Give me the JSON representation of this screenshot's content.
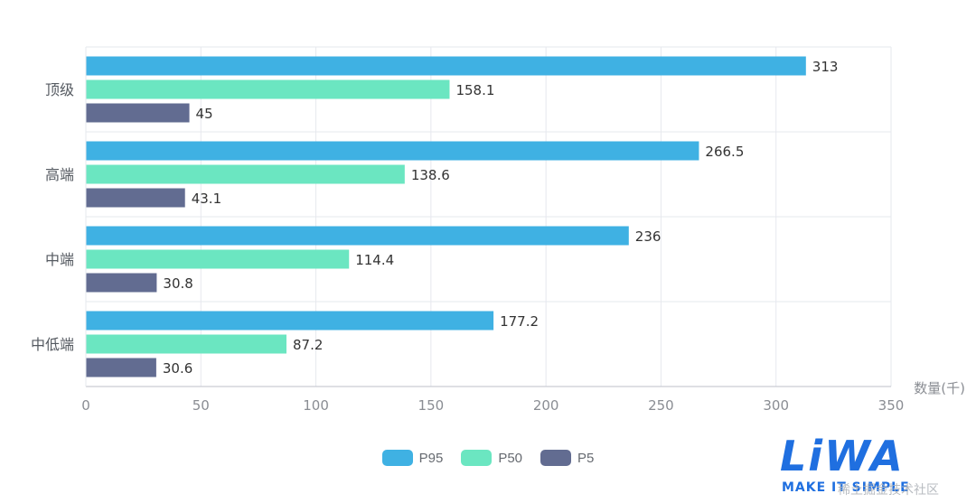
{
  "chart_data": {
    "type": "bar",
    "orientation": "horizontal",
    "categories": [
      "顶级",
      "高端",
      "中端",
      "中低端"
    ],
    "series": [
      {
        "name": "P95",
        "color": "#3fb1e3",
        "values": [
          313,
          266.5,
          236,
          177.2
        ]
      },
      {
        "name": "P50",
        "color": "#6be6c1",
        "values": [
          158.1,
          138.6,
          114.4,
          87.2
        ]
      },
      {
        "name": "P5",
        "color": "#626c91",
        "values": [
          45,
          43.1,
          30.8,
          30.6
        ]
      }
    ],
    "value_labels": [
      [
        "313",
        "158.1",
        "45"
      ],
      [
        "266.5",
        "138.6",
        "43.1"
      ],
      [
        "236",
        "114.4",
        "30.8"
      ],
      [
        "177.2",
        "87.2",
        "30.6"
      ]
    ],
    "xlim": [
      0,
      350
    ],
    "xticks": [
      "0",
      "50",
      "100",
      "150",
      "200",
      "250",
      "300",
      "350"
    ],
    "xlabel": "数量(千)",
    "ylabel": "",
    "title": "",
    "grid": true,
    "legend": "bottom-center"
  },
  "watermark": {
    "logo_text": "LiWA",
    "slogan": "MAKE IT SIMPLE",
    "cn_text": "稀土掘金技术社区"
  }
}
